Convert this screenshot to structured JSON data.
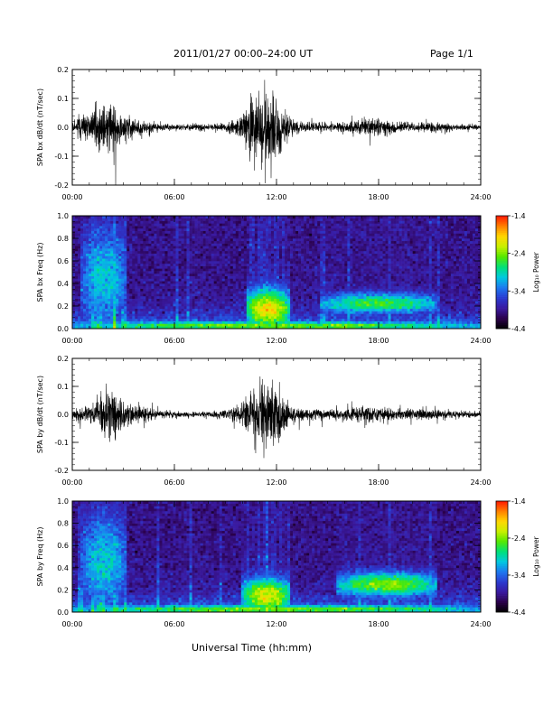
{
  "header": {
    "title": "2011/01/27  00:00–24:00 UT",
    "page": "Page 1/1"
  },
  "x_axis_title": "Universal Time (hh:mm)",
  "colors": {
    "background": "#ffffff",
    "line": "#000000",
    "colormap": [
      "#000000",
      "#2a004a",
      "#3a1aa0",
      "#2a3ad0",
      "#1d78f0",
      "#00c8e0",
      "#00e07a",
      "#52e800",
      "#c8f000",
      "#ffd700",
      "#ff8000",
      "#ff1800"
    ]
  },
  "chart_data": [
    {
      "type": "line",
      "ylabel": "SPA bx dB/dt (nT/sec)",
      "xlim": [
        "00:00",
        "24:00"
      ],
      "ylim": [
        -0.2,
        0.2
      ],
      "x_ticks": [
        "00:00",
        "06:00",
        "12:00",
        "18:00",
        "24:00"
      ],
      "y_ticks": [
        "-0.2",
        "-0.1",
        "0.0",
        "0.1",
        "0.2"
      ],
      "series_envelope": {
        "x_hours": [
          0,
          0.5,
          1,
          1.5,
          2,
          2.5,
          3,
          4,
          5,
          6,
          7,
          8,
          9,
          10,
          10.5,
          11,
          11.5,
          12,
          12.5,
          13,
          14,
          15,
          16,
          17,
          17.5,
          18,
          19,
          20,
          21,
          22,
          23,
          24
        ],
        "amplitude": [
          0.04,
          0.07,
          0.09,
          0.14,
          0.18,
          0.16,
          0.09,
          0.05,
          0.03,
          0.02,
          0.025,
          0.02,
          0.03,
          0.08,
          0.2,
          0.22,
          0.22,
          0.2,
          0.13,
          0.05,
          0.03,
          0.03,
          0.04,
          0.05,
          0.07,
          0.05,
          0.035,
          0.03,
          0.03,
          0.025,
          0.02,
          0.02
        ]
      }
    },
    {
      "type": "heatmap",
      "ylabel": "SPA bx Freq (Hz)",
      "xlim": [
        "00:00",
        "24:00"
      ],
      "ylim": [
        0.0,
        1.0
      ],
      "x_ticks": [
        "00:00",
        "06:00",
        "12:00",
        "18:00",
        "24:00"
      ],
      "y_ticks": [
        "0.0",
        "0.2",
        "0.4",
        "0.6",
        "0.8",
        "1.0"
      ],
      "colorbar": {
        "label": "Log₁₀ Power",
        "range": [
          -4.4,
          -1.4
        ],
        "ticks": [
          "-1.4",
          "-2.4",
          "-3.4",
          "-4.4"
        ]
      },
      "features": [
        {
          "desc": "broadband burst",
          "t_hours": [
            10.2,
            12.8
          ],
          "freq_hz": [
            0.0,
            0.35
          ],
          "log_power_peak": -2.0
        },
        {
          "desc": "band emission",
          "t_hours": [
            14.5,
            21.5
          ],
          "freq_hz": [
            0.15,
            0.3
          ],
          "log_power_peak": -2.6
        },
        {
          "desc": "low-frequency enhancement",
          "t_hours": [
            0,
            24
          ],
          "freq_hz": [
            0.0,
            0.05
          ],
          "log_power_peak": -2.4
        },
        {
          "desc": "vertical striations",
          "t_hours": [
            0.5,
            3.2
          ],
          "freq_hz": [
            0.0,
            0.9
          ],
          "log_power_peak": -3.0
        }
      ]
    },
    {
      "type": "line",
      "ylabel": "SPA by dB/dt (nT/sec)",
      "xlim": [
        "00:00",
        "24:00"
      ],
      "ylim": [
        -0.2,
        0.2
      ],
      "x_ticks": [
        "00:00",
        "06:00",
        "12:00",
        "18:00",
        "24:00"
      ],
      "y_ticks": [
        "-0.2",
        "-0.1",
        "0.0",
        "0.1",
        "0.2"
      ],
      "series_envelope": {
        "x_hours": [
          0,
          0.5,
          1,
          1.5,
          2,
          2.5,
          3,
          4,
          5,
          6,
          7,
          8,
          9,
          10,
          10.5,
          11,
          11.5,
          12,
          12.5,
          13,
          14,
          15,
          16,
          17,
          17.5,
          18,
          19,
          20,
          21,
          22,
          23,
          24
        ],
        "amplitude": [
          0.035,
          0.05,
          0.06,
          0.11,
          0.2,
          0.17,
          0.1,
          0.05,
          0.03,
          0.02,
          0.02,
          0.02,
          0.03,
          0.08,
          0.2,
          0.22,
          0.22,
          0.2,
          0.11,
          0.05,
          0.04,
          0.035,
          0.04,
          0.05,
          0.06,
          0.05,
          0.04,
          0.04,
          0.035,
          0.03,
          0.02,
          0.02
        ]
      }
    },
    {
      "type": "heatmap",
      "ylabel": "SPA by Freq (Hz)",
      "xlim": [
        "00:00",
        "24:00"
      ],
      "ylim": [
        0.0,
        1.0
      ],
      "x_ticks": [
        "00:00",
        "06:00",
        "12:00",
        "18:00",
        "24:00"
      ],
      "y_ticks": [
        "0.0",
        "0.2",
        "0.4",
        "0.6",
        "0.8",
        "1.0"
      ],
      "colorbar": {
        "label": "Log₁₀ Power",
        "range": [
          -4.4,
          -1.4
        ],
        "ticks": [
          "-1.4",
          "-2.4",
          "-3.4",
          "-4.4"
        ]
      },
      "features": [
        {
          "desc": "broadband burst",
          "t_hours": [
            10.0,
            12.8
          ],
          "freq_hz": [
            0.0,
            0.3
          ],
          "log_power_peak": -2.1
        },
        {
          "desc": "band emission",
          "t_hours": [
            15.5,
            21.5
          ],
          "freq_hz": [
            0.15,
            0.35
          ],
          "log_power_peak": -2.4
        },
        {
          "desc": "low-frequency enhancement",
          "t_hours": [
            0,
            24
          ],
          "freq_hz": [
            0.0,
            0.05
          ],
          "log_power_peak": -2.4
        },
        {
          "desc": "vertical striations",
          "t_hours": [
            0.5,
            3.2
          ],
          "freq_hz": [
            0.0,
            0.9
          ],
          "log_power_peak": -3.0
        }
      ]
    }
  ]
}
